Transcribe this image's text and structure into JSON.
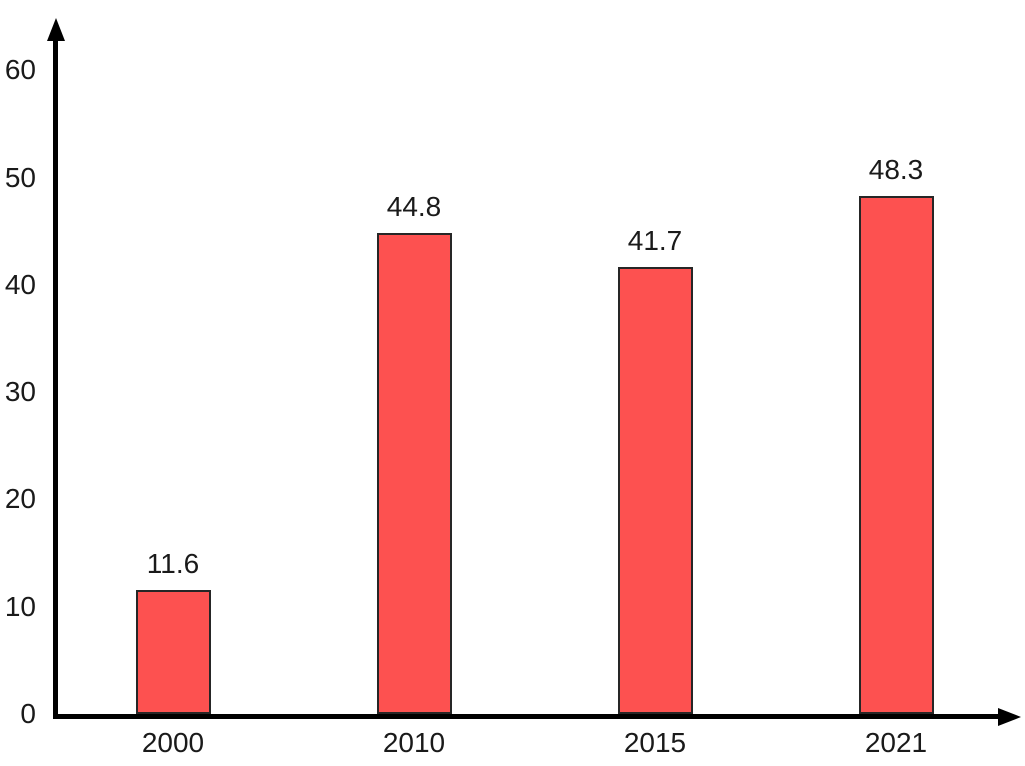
{
  "chart_data": {
    "type": "bar",
    "title": "",
    "xlabel": "",
    "ylabel": "",
    "categories": [
      "2000",
      "2010",
      "2015",
      "2021"
    ],
    "values": [
      11.6,
      44.8,
      41.7,
      48.3
    ],
    "data_labels": [
      "11.6",
      "44.8",
      "41.7",
      "48.3"
    ],
    "yticks": [
      0,
      10,
      20,
      30,
      40,
      50,
      60
    ],
    "ylim": [
      0,
      63
    ],
    "grid": false,
    "legend": false,
    "bar_color": "#FD5150",
    "bar_border_color": "#262626",
    "axis_color": "#000000",
    "text_color": "#1a1a1a"
  }
}
